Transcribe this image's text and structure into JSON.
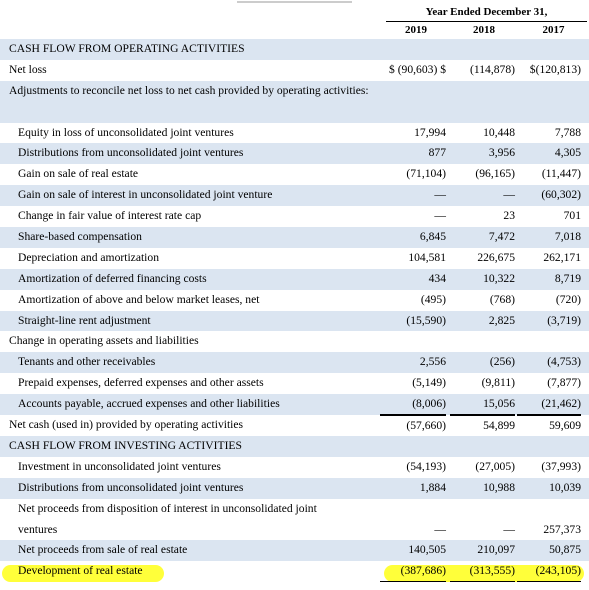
{
  "header": {
    "group_label": "Year Ended December 31,",
    "years": [
      "2019",
      "2018",
      "2017"
    ]
  },
  "rows": [
    {
      "label": "CASH FLOW FROM OPERATING ACTIVITIES",
      "indent": 0,
      "shade": true,
      "values": [
        "",
        "",
        ""
      ]
    },
    {
      "label": "Net loss",
      "indent": 0,
      "shade": false,
      "values": [
        "$ (90,603) $",
        "(114,878)",
        "$(120,813)"
      ]
    },
    {
      "label": "Adjustments to reconcile net loss to net cash provided by operating activities:",
      "indent": 0,
      "shade": true,
      "tall": true,
      "values": [
        "",
        "",
        ""
      ]
    },
    {
      "label": "Equity in loss of unconsolidated joint ventures",
      "indent": 1,
      "shade": false,
      "values": [
        "17,994",
        "10,448",
        "7,788"
      ]
    },
    {
      "label": "Distributions from unconsolidated joint ventures",
      "indent": 1,
      "shade": true,
      "values": [
        "877",
        "3,956",
        "4,305"
      ]
    },
    {
      "label": "Gain on sale of real estate",
      "indent": 1,
      "shade": false,
      "values": [
        "(71,104)",
        "(96,165)",
        "(11,447)"
      ]
    },
    {
      "label": "Gain on sale of interest in unconsolidated joint venture",
      "indent": 1,
      "shade": true,
      "values": [
        "—",
        "—",
        "(60,302)"
      ]
    },
    {
      "label": "Change in fair value of interest rate cap",
      "indent": 1,
      "shade": false,
      "values": [
        "—",
        "23",
        "701"
      ]
    },
    {
      "label": "Share-based compensation",
      "indent": 1,
      "shade": true,
      "values": [
        "6,845",
        "7,472",
        "7,018"
      ]
    },
    {
      "label": "Depreciation and amortization",
      "indent": 1,
      "shade": false,
      "values": [
        "104,581",
        "226,675",
        "262,171"
      ]
    },
    {
      "label": "Amortization of deferred financing costs",
      "indent": 1,
      "shade": true,
      "values": [
        "434",
        "10,322",
        "8,719"
      ]
    },
    {
      "label": "Amortization of above and below market leases, net",
      "indent": 1,
      "shade": false,
      "values": [
        "(495)",
        "(768)",
        "(720)"
      ]
    },
    {
      "label": "Straight-line rent adjustment",
      "indent": 1,
      "shade": true,
      "values": [
        "(15,590)",
        "2,825",
        "(3,719)"
      ]
    },
    {
      "label": "Change in operating assets and liabilities",
      "indent": 0,
      "shade": false,
      "values": [
        "",
        "",
        ""
      ]
    },
    {
      "label": "Tenants and other receivables",
      "indent": 1,
      "shade": true,
      "values": [
        "2,556",
        "(256)",
        "(4,753)"
      ]
    },
    {
      "label": "Prepaid expenses, deferred expenses and other assets",
      "indent": 1,
      "shade": false,
      "values": [
        "(5,149)",
        "(9,811)",
        "(7,877)"
      ]
    },
    {
      "label": "Accounts payable, accrued expenses and other liabilities",
      "indent": 1,
      "shade": true,
      "values": [
        "(8,006)",
        "15,056",
        "(21,462)"
      ]
    },
    {
      "label": "Net cash (used in) provided by operating activities",
      "indent": 0,
      "shade": false,
      "values": [
        "(57,660)",
        "54,899",
        "59,609"
      ]
    },
    {
      "label": "CASH FLOW FROM INVESTING ACTIVITIES",
      "indent": 0,
      "shade": true,
      "values": [
        "",
        "",
        ""
      ]
    },
    {
      "label": "Investment in unconsolidated joint ventures",
      "indent": 1,
      "shade": false,
      "values": [
        "(54,193)",
        "(27,005)",
        "(37,993)"
      ]
    },
    {
      "label": "Distributions from unconsolidated joint ventures",
      "indent": 1,
      "shade": true,
      "values": [
        "1,884",
        "10,988",
        "10,039"
      ]
    },
    {
      "label": "Net proceeds from disposition of interest in unconsolidated joint ventures",
      "indent": 1,
      "shade": false,
      "tall": true,
      "values": [
        "—",
        "—",
        "257,373"
      ]
    },
    {
      "label": "Net proceeds from sale of real estate",
      "indent": 1,
      "shade": true,
      "values": [
        "140,505",
        "210,097",
        "50,875"
      ]
    },
    {
      "label": "Development of real estate",
      "indent": 1,
      "shade": false,
      "highlight": true,
      "values": [
        "(387,686)",
        "(313,555)",
        "(243,105)"
      ]
    }
  ],
  "colors": {
    "row_shade": "#dbe5f1",
    "highlight": "#ffff3a"
  }
}
